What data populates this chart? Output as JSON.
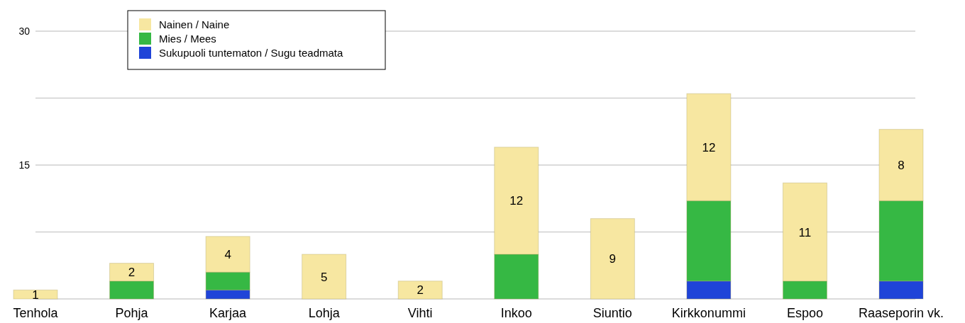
{
  "chart_data": {
    "type": "bar",
    "stacked": true,
    "categories": [
      "Tenhola",
      "Pohja",
      "Karjaa",
      "Lohja",
      "Vihti",
      "Inkoo",
      "Siuntio",
      "Kirkkonummi",
      "Espoo",
      "Raaseporin vk."
    ],
    "series": [
      {
        "name": "Sukupuoli tuntematon / Sugu teadmata",
        "color": "#1f44d8",
        "values": [
          null,
          null,
          1,
          null,
          null,
          null,
          null,
          2,
          null,
          2
        ]
      },
      {
        "name": "Mies / Mees",
        "color": "#36b844",
        "values": [
          null,
          2,
          2,
          null,
          null,
          5,
          null,
          9,
          2,
          9
        ]
      },
      {
        "name": "Nainen / Naine",
        "color": "#f7e7a1",
        "values": [
          1,
          2,
          4,
          5,
          2,
          12,
          9,
          12,
          11,
          8
        ],
        "value_labels": [
          "1",
          "2",
          "4",
          "5",
          "2",
          "12",
          "9",
          "12",
          "11",
          "8"
        ]
      }
    ],
    "ylim": [
      0,
      30
    ],
    "yticks": [
      {
        "value": 0,
        "label": null
      },
      {
        "value": 7.5,
        "label": null
      },
      15,
      {
        "value": 22.5,
        "label": null
      },
      30
    ],
    "grid": "y",
    "legend": "top left"
  }
}
